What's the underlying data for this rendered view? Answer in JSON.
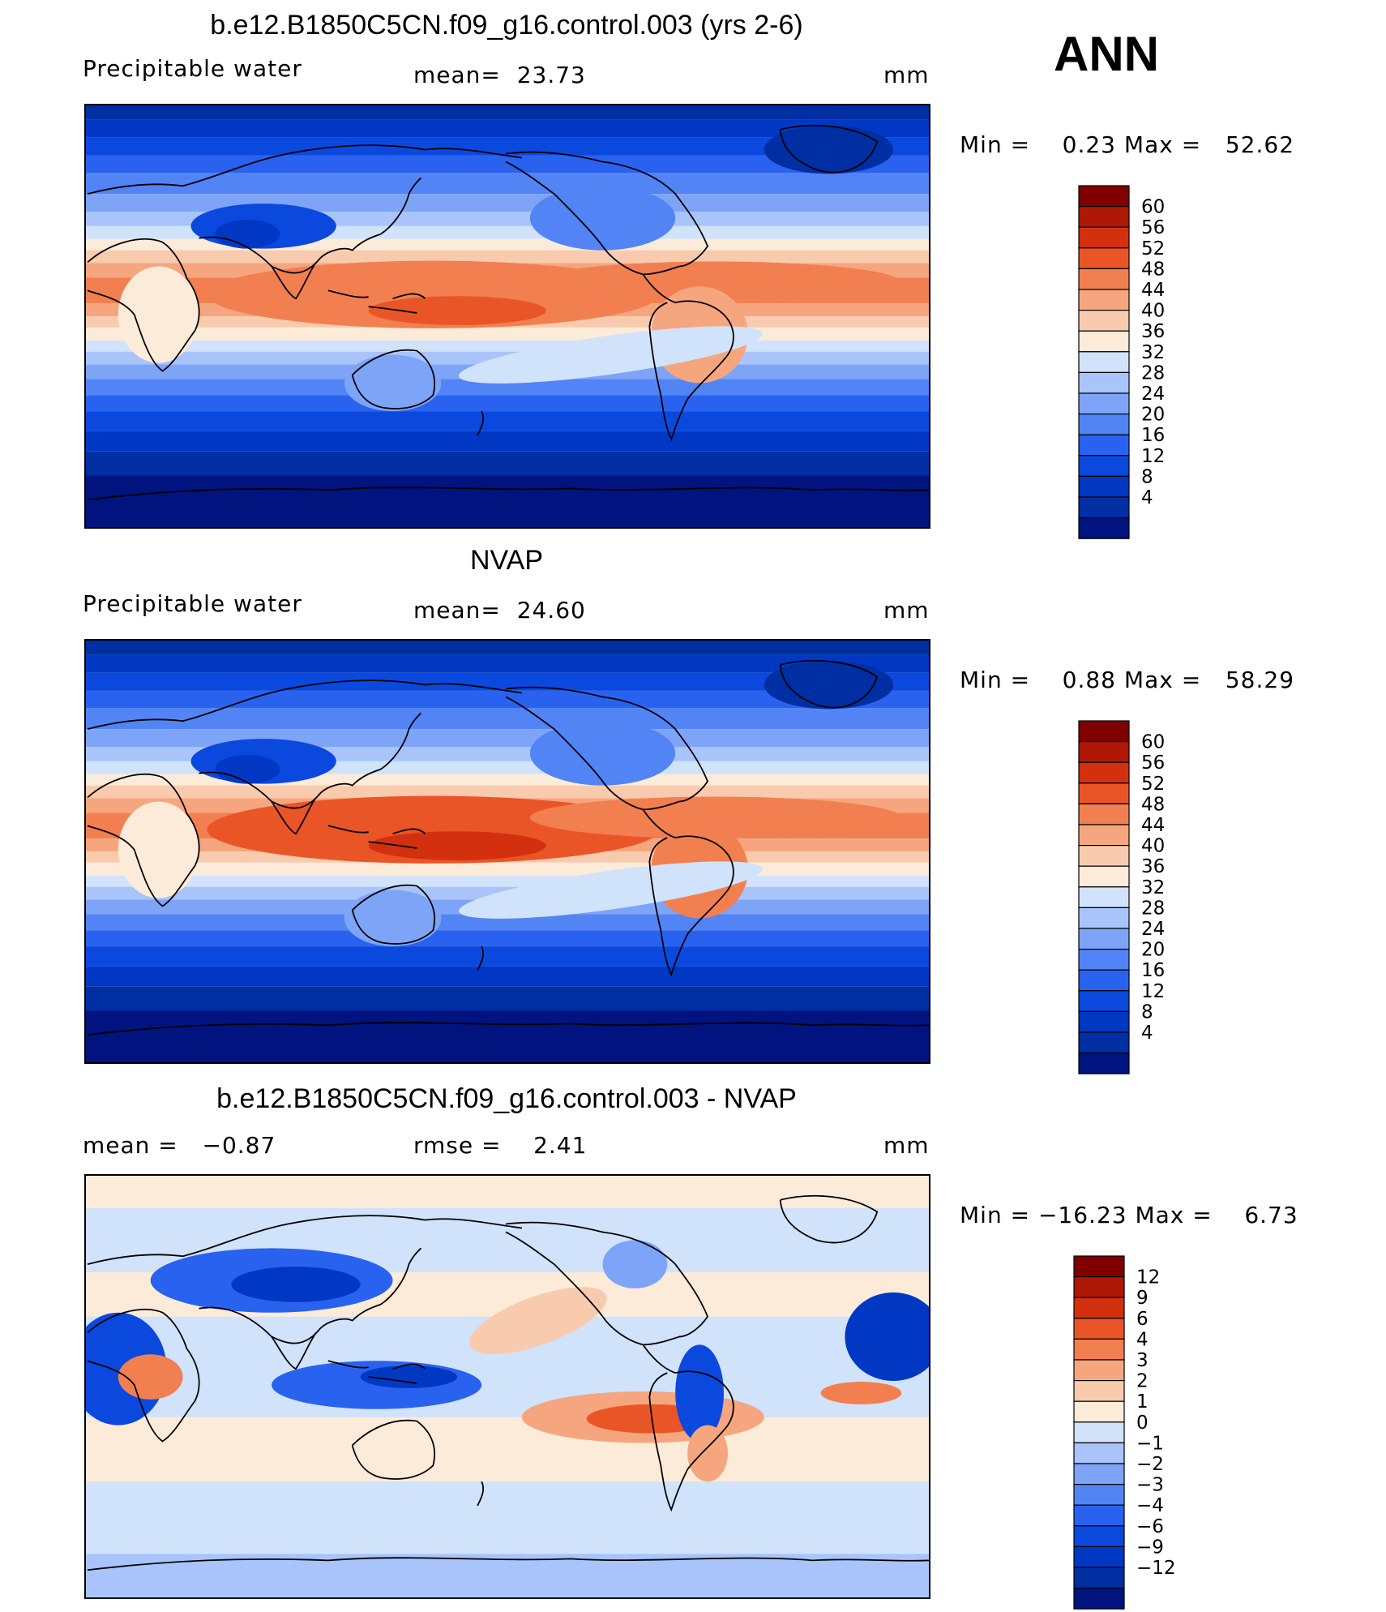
{
  "season": "ANN",
  "colors": {
    "abs": [
      "#00137f",
      "#002ea3",
      "#0038c4",
      "#0b49de",
      "#2a62f0",
      "#5284f5",
      "#7ea4f8",
      "#a8c4fa",
      "#d1e2fb",
      "#fdebd9",
      "#f9cbae",
      "#f6a67e",
      "#f27f50",
      "#ea5527",
      "#d33010",
      "#b01806",
      "#800000"
    ],
    "diff": [
      "#00137f",
      "#002ea3",
      "#0038c4",
      "#0b49de",
      "#2a62f0",
      "#5284f5",
      "#7ea4f8",
      "#a8c4fa",
      "#d1e2fb",
      "#fdebd9",
      "#f9cbae",
      "#f6a67e",
      "#f27f50",
      "#ea5527",
      "#d33010",
      "#b01806",
      "#800000"
    ]
  },
  "chart_data": [
    {
      "type": "heatmap",
      "title": "b.e12.B1850C5CN.f09_g16.control.003 (yrs 2-6)",
      "variable": "Precipitable water",
      "mean_label": "mean=",
      "mean": "23.73",
      "units": "mm",
      "min_label": "Min =",
      "min": "0.23",
      "max_label": "Max =",
      "max": "52.62",
      "levels": [
        "4",
        "8",
        "12",
        "16",
        "20",
        "24",
        "28",
        "32",
        "36",
        "40",
        "44",
        "48",
        "52",
        "56",
        "60"
      ],
      "palette": "abs"
    },
    {
      "type": "heatmap",
      "title": "NVAP",
      "variable": "Precipitable water",
      "mean_label": "mean=",
      "mean": "24.60",
      "units": "mm",
      "min_label": "Min =",
      "min": "0.88",
      "max_label": "Max =",
      "max": "58.29",
      "levels": [
        "4",
        "8",
        "12",
        "16",
        "20",
        "24",
        "28",
        "32",
        "36",
        "40",
        "44",
        "48",
        "52",
        "56",
        "60"
      ],
      "palette": "abs"
    },
    {
      "type": "heatmap",
      "title": "b.e12.B1850C5CN.f09_g16.control.003 - NVAP",
      "mean_label": "mean =",
      "mean": "−0.87",
      "rmse_label": "rmse =",
      "rmse": "2.41",
      "units": "mm",
      "min_label": "Min =",
      "min": "−16.23",
      "max_label": "Max =",
      "max": "6.73",
      "levels": [
        "−12",
        "−9",
        "−6",
        "−4",
        "−3",
        "−2",
        "−1",
        "0",
        "1",
        "2",
        "3",
        "4",
        "6",
        "9",
        "12"
      ],
      "palette": "diff"
    }
  ]
}
